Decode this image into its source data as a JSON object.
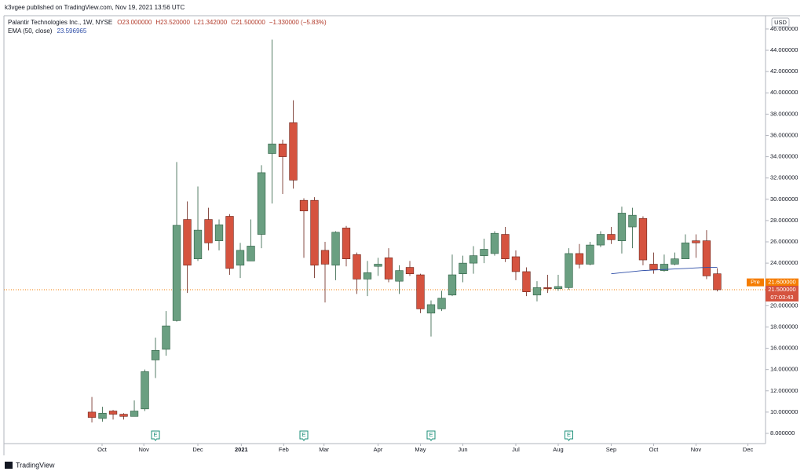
{
  "chart_data": {
    "type": "candlestick",
    "publisher": "k3vgee published on TradingView.com, Nov 19, 2021 13:56 UTC",
    "title": "Palantir Technologies Inc., 1W, NYSE",
    "ohlc_legend": [
      "O23.000000",
      "H23.520000",
      "L21.342000",
      "C21.500000",
      "−1.330000 (−5.83%)"
    ],
    "indicator_name": "EMA (50, close)",
    "indicator_value": "23.596965",
    "currency": "USD",
    "brand": "TradingView",
    "up_color": "#6a9f81",
    "up_border": "#2b5d41",
    "down_color": "#d5533f",
    "down_border": "#6b2218",
    "open": [
      10,
      9.4,
      10.1,
      9.8,
      9.6,
      10.3,
      14.9,
      15.9,
      18.6,
      28.1,
      24.4,
      28.1,
      26.1,
      28.4,
      23.8,
      24.2,
      26.7,
      34.3,
      35.2,
      37.2,
      29.9,
      29.9,
      25.2,
      23.8,
      27.3,
      24.8,
      22.5,
      23.7,
      24.5,
      22.3,
      23.6,
      22.9,
      19.3,
      19.7,
      21.0,
      23.0,
      24.0,
      24.7,
      24.9,
      26.7,
      24.6,
      23.2,
      21.0,
      21.7,
      21.6,
      21.7,
      24.9,
      23.9,
      25.7,
      26.7,
      26.1,
      27.4,
      28.2,
      23.9,
      23.3,
      23.9,
      24.4,
      26.1,
      26.1,
      23.0
    ],
    "high": [
      11.42,
      10.5,
      10.2,
      9.9,
      11.1,
      14.0,
      17.0,
      19.5,
      33.5,
      29.8,
      31.2,
      29.2,
      28.1,
      28.6,
      25.9,
      28.1,
      33.2,
      45.0,
      35.6,
      39.3,
      30.1,
      30.2,
      26.0,
      27.0,
      27.5,
      25.0,
      24.2,
      24.5,
      25.4,
      23.8,
      24.2,
      23.0,
      20.5,
      21.4,
      24.8,
      24.7,
      25.6,
      26.3,
      27.0,
      27.4,
      25.2,
      23.6,
      22.3,
      22.9,
      22.9,
      25.4,
      25.8,
      26.0,
      27.0,
      27.4,
      29.3,
      29.2,
      28.4,
      25.0,
      24.8,
      25.0,
      26.7,
      26.7,
      27.1,
      23.52
    ],
    "low": [
      9.02,
      9.1,
      9.3,
      9.3,
      9.6,
      10.1,
      13.2,
      15.3,
      18.5,
      21.2,
      24.2,
      25.2,
      25.2,
      22.9,
      22.6,
      24.2,
      25.4,
      29.6,
      30.5,
      31.0,
      24.5,
      22.6,
      20.3,
      22.4,
      23.7,
      21.1,
      20.9,
      22.8,
      22.2,
      21.1,
      22.8,
      19.3,
      17.1,
      19.5,
      20.9,
      22.2,
      23.0,
      24.0,
      24.7,
      24.1,
      22.4,
      20.9,
      20.4,
      21.2,
      21.4,
      21.5,
      23.5,
      23.8,
      25.5,
      25.8,
      24.9,
      25.4,
      23.8,
      23.0,
      23.2,
      23.8,
      24.4,
      24.5,
      22.5,
      21.342
    ],
    "close": [
      9.5,
      9.9,
      9.8,
      9.6,
      10.1,
      13.8,
      15.8,
      18.1,
      27.55,
      23.8,
      27.1,
      25.9,
      27.6,
      23.5,
      25.2,
      25.6,
      32.5,
      35.2,
      34.0,
      31.8,
      28.9,
      23.8,
      23.9,
      26.9,
      24.4,
      22.5,
      23.1,
      23.9,
      22.5,
      23.3,
      23.0,
      19.7,
      20.1,
      20.7,
      22.9,
      24.0,
      24.7,
      25.3,
      26.8,
      24.4,
      23.2,
      21.3,
      21.7,
      21.6,
      21.8,
      24.9,
      23.9,
      25.7,
      26.7,
      26.2,
      28.7,
      28.5,
      24.3,
      23.4,
      23.9,
      24.4,
      25.9,
      25.9,
      22.8,
      21.5
    ],
    "ema": {
      "color": "#2f4fa8",
      "start": 49,
      "values": [
        23.0,
        23.1,
        23.2,
        23.3,
        23.35,
        23.4,
        23.45,
        23.5,
        23.55,
        23.6,
        23.6
      ]
    },
    "earnings_markers": {
      "label": "E",
      "color": "#1b8f78",
      "at": [
        6,
        20,
        32,
        45
      ]
    },
    "price_tags": {
      "pre_label": "Pre",
      "pre_value": 21.6,
      "pre_text": "21.600000",
      "pre_color": "#f57c00",
      "last_value": 21.5,
      "last_text": "21.500000",
      "countdown": "07:03:43",
      "last_color": "#d5533f"
    },
    "xlim": [
      -8.3,
      63.56
    ],
    "xticks": [
      {
        "value": 0.96,
        "label": "Oct"
      },
      {
        "value": 4.9,
        "label": "Nov"
      },
      {
        "value": 10,
        "label": "Dec"
      },
      {
        "value": 14.1,
        "label": "2021"
      },
      {
        "value": 18.1,
        "label": "Feb"
      },
      {
        "value": 21.9,
        "label": "Mar"
      },
      {
        "value": 27,
        "label": "Apr"
      },
      {
        "value": 31,
        "label": "May"
      },
      {
        "value": 35,
        "label": "Jun"
      },
      {
        "value": 40,
        "label": "Jul"
      },
      {
        "value": 44,
        "label": "Aug"
      },
      {
        "value": 49,
        "label": "Sep"
      },
      {
        "value": 53,
        "label": "Oct"
      },
      {
        "value": 57,
        "label": "Nov"
      },
      {
        "value": 61.9,
        "label": "Dec"
      }
    ],
    "ylim": [
      7.04,
      47.25
    ],
    "yticks": [
      {
        "value": 8,
        "label": "8.000000"
      },
      {
        "value": 10,
        "label": "10.000000"
      },
      {
        "value": 12,
        "label": "12.000000"
      },
      {
        "value": 14,
        "label": "14.000000"
      },
      {
        "value": 16,
        "label": "16.000000"
      },
      {
        "value": 18,
        "label": "18.000000"
      },
      {
        "value": 20,
        "label": "20.000000"
      },
      {
        "value": 22,
        "label": "22.000000"
      },
      {
        "value": 24,
        "label": "24.000000"
      },
      {
        "value": 26,
        "label": "26.000000"
      },
      {
        "value": 28,
        "label": "28.000000"
      },
      {
        "value": 30,
        "label": "30.000000"
      },
      {
        "value": 32,
        "label": "32.000000"
      },
      {
        "value": 34,
        "label": "34.000000"
      },
      {
        "value": 36,
        "label": "36.000000"
      },
      {
        "value": 38,
        "label": "38.000000"
      },
      {
        "value": 40,
        "label": "40.000000"
      },
      {
        "value": 42,
        "label": "42.000000"
      },
      {
        "value": 44,
        "label": "44.000000"
      },
      {
        "value": 46,
        "label": "46.000000"
      }
    ]
  }
}
